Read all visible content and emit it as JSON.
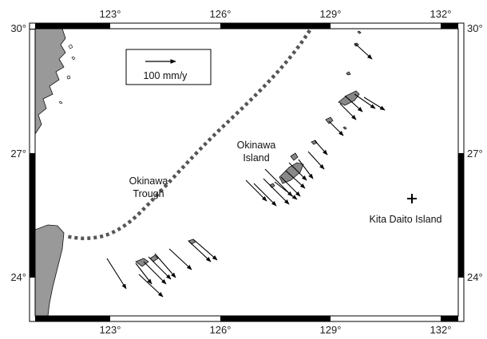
{
  "map": {
    "lon_ticks": [
      "123°",
      "126°",
      "129°",
      "132°"
    ],
    "lat_ticks": [
      "30°",
      "27°",
      "24°"
    ],
    "extent": {
      "lon": [
        121,
        132.5
      ],
      "lat": [
        23.2,
        30
      ]
    },
    "colors": {
      "land": "#999999",
      "frame": "#000000",
      "trough": "#555555",
      "vector": "#000000"
    }
  },
  "legend": {
    "scale_label": "100 mm/y"
  },
  "labels": {
    "trough_line1": "Okinawa",
    "trough_line2": "Trough",
    "island_line1": "Okinawa",
    "island_line2": "Island",
    "kita_daito": "Kita Daito Island"
  }
}
